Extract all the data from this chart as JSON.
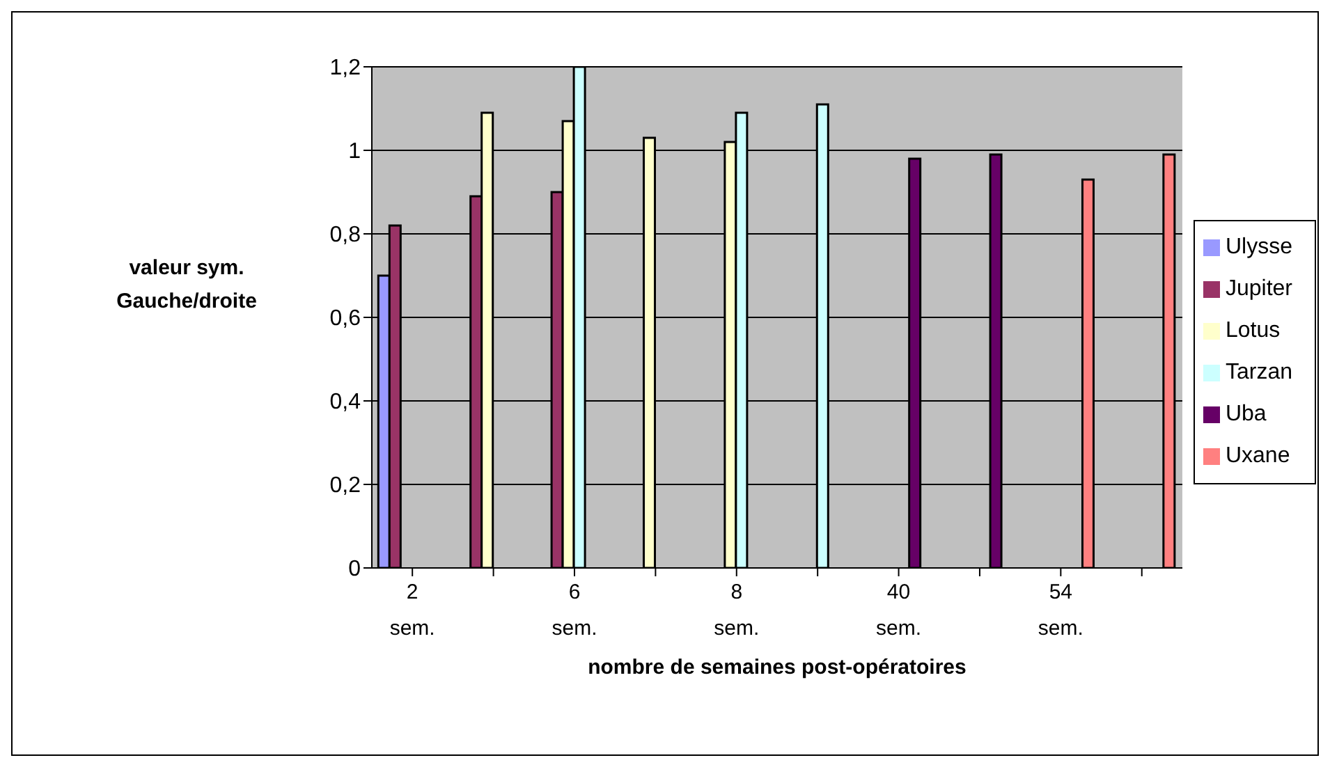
{
  "chart_data": {
    "type": "bar",
    "xlabel": "nombre de semaines post-opératoires",
    "ylabel": "valeur sym. Gauche/droite",
    "categories": [
      "2 sem.",
      null,
      "6 sem.",
      null,
      "8 sem.",
      null,
      "40 sem.",
      null,
      "54 sem.",
      null
    ],
    "series": [
      {
        "name": "Ulysse",
        "color": "#9999ff",
        "values": [
          0.7,
          null,
          null,
          null,
          null,
          null,
          null,
          null,
          null,
          null
        ]
      },
      {
        "name": "Jupiter",
        "color": "#993366",
        "values": [
          0.82,
          0.89,
          0.9,
          null,
          null,
          null,
          null,
          null,
          null,
          null
        ]
      },
      {
        "name": "Lotus",
        "color": "#ffffcc",
        "values": [
          null,
          1.09,
          1.07,
          1.03,
          1.02,
          null,
          null,
          null,
          null,
          null
        ]
      },
      {
        "name": "Tarzan",
        "color": "#ccffff",
        "values": [
          null,
          null,
          1.2,
          null,
          1.09,
          1.11,
          null,
          null,
          null,
          null
        ]
      },
      {
        "name": "Uba",
        "color": "#660066",
        "values": [
          null,
          null,
          null,
          null,
          null,
          null,
          0.98,
          0.99,
          null,
          null
        ]
      },
      {
        "name": "Uxane",
        "color": "#ff8080",
        "values": [
          null,
          null,
          null,
          null,
          null,
          null,
          null,
          null,
          0.93,
          0.99
        ]
      }
    ],
    "ylim": [
      0,
      1.2
    ],
    "yticks": [
      0,
      {
        "value": 0.2,
        "label": "0,2"
      },
      {
        "value": 0.4,
        "label": "0,4"
      },
      {
        "value": 0.6,
        "label": "0,6"
      },
      {
        "value": 0.8,
        "label": "0,8"
      },
      1,
      {
        "value": 1.2,
        "label": "1,2"
      }
    ],
    "grid": "y",
    "legend": "right"
  }
}
